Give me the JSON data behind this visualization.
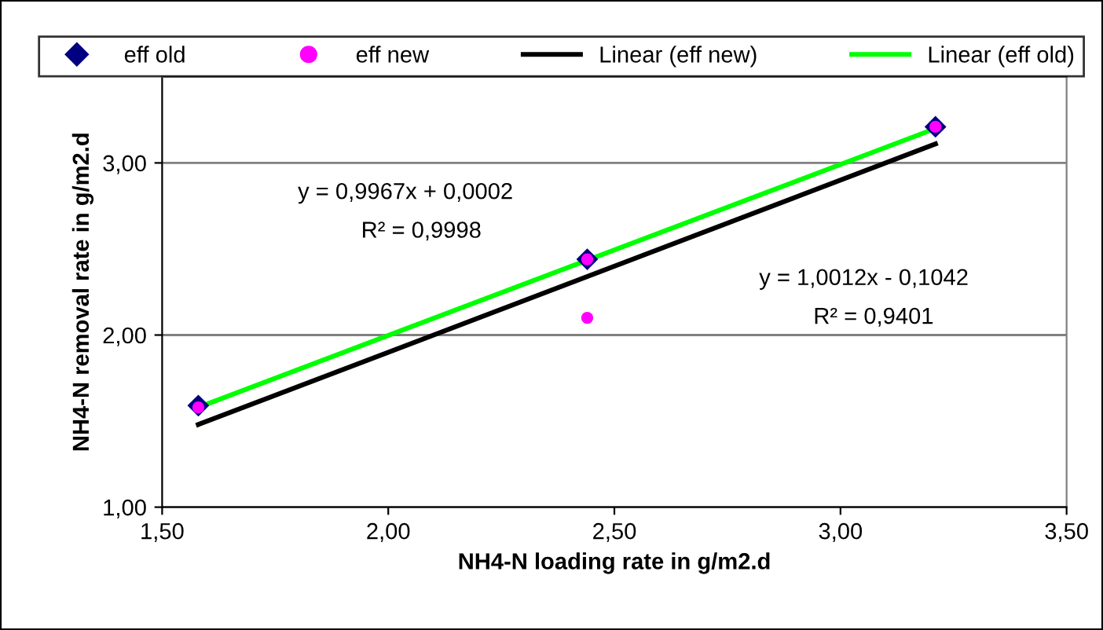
{
  "chart_data": {
    "type": "scatter",
    "xlabel": "NH4-N loading rate in g/m2.d",
    "ylabel": "NH4-N removal rate in g/m2.d",
    "xlim": [
      1.5,
      3.5
    ],
    "xticks": [
      {
        "value": 1.5,
        "label": "1,50"
      },
      {
        "value": 2.0,
        "label": "2,00"
      },
      {
        "value": 2.5,
        "label": "2,50"
      },
      {
        "value": 3.0,
        "label": "3,00"
      },
      {
        "value": 3.5,
        "label": "3,50"
      }
    ],
    "ylim": [
      1.0,
      3.5
    ],
    "yticks": [
      {
        "value": 1.0,
        "label": "1,00"
      },
      {
        "value": 2.0,
        "label": "2,00"
      },
      {
        "value": 3.0,
        "label": "3,00"
      }
    ],
    "grid": "y",
    "legend": "top",
    "series": [
      {
        "name": "eff old",
        "marker": "diamond",
        "color": "#000080",
        "x": [
          1.58,
          2.44,
          3.21
        ],
        "values": [
          1.59,
          2.44,
          3.21
        ]
      },
      {
        "name": "eff new",
        "marker": "circle",
        "color": "#ff00ff",
        "x": [
          1.58,
          2.44,
          2.44,
          3.21
        ],
        "values": [
          1.58,
          2.44,
          2.1,
          3.21
        ]
      },
      {
        "name": "Linear (eff new)",
        "type": "line",
        "color": "#000000",
        "x": [
          1.58,
          3.21
        ],
        "values": [
          1.48,
          3.11
        ]
      },
      {
        "name": "Linear (eff old)",
        "type": "line",
        "color": "#00ff00",
        "x": [
          1.58,
          3.21
        ],
        "values": [
          1.58,
          3.2
        ]
      }
    ],
    "annotations": [
      "y = 0,9967x + 0,0002",
      "R² = 0,9998",
      "y = 1,0012x - 0,1042",
      "R² = 0,9401"
    ]
  }
}
